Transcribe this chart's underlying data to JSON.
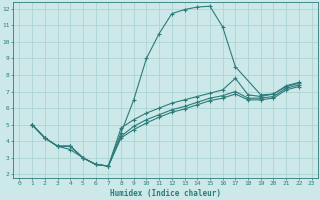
{
  "xlabel": "Humidex (Indice chaleur)",
  "bg_color": "#cce8e8",
  "line_color": "#2d7b7b",
  "grid_color": "#aed4d4",
  "xlim": [
    -0.5,
    23.5
  ],
  "ylim": [
    1.8,
    12.4
  ],
  "xticks": [
    0,
    1,
    2,
    3,
    4,
    5,
    6,
    7,
    8,
    9,
    10,
    11,
    12,
    13,
    14,
    15,
    16,
    17,
    18,
    19,
    20,
    21,
    22,
    23
  ],
  "yticks": [
    2,
    3,
    4,
    5,
    6,
    7,
    8,
    9,
    10,
    11,
    12
  ],
  "lines": [
    {
      "x": [
        1,
        2,
        3,
        4,
        5,
        6,
        7,
        8,
        9,
        10,
        11,
        12,
        13,
        14,
        15,
        16,
        17,
        19,
        20,
        21,
        22
      ],
      "y": [
        5.0,
        4.2,
        3.7,
        3.5,
        3.0,
        2.6,
        2.5,
        4.5,
        6.5,
        9.0,
        10.5,
        11.7,
        11.95,
        12.1,
        12.15,
        10.9,
        8.5,
        6.8,
        6.85,
        7.35,
        7.55
      ]
    },
    {
      "x": [
        1,
        2,
        3,
        4,
        5,
        6,
        7,
        8,
        9,
        10,
        11,
        12,
        13,
        14,
        15,
        16,
        17,
        18,
        19,
        20,
        21,
        22
      ],
      "y": [
        5.0,
        4.2,
        3.7,
        3.7,
        3.0,
        2.6,
        2.5,
        4.8,
        5.3,
        5.7,
        6.0,
        6.3,
        6.5,
        6.7,
        6.9,
        7.1,
        7.8,
        6.8,
        6.7,
        6.85,
        7.3,
        7.5
      ]
    },
    {
      "x": [
        1,
        2,
        3,
        4,
        5,
        6,
        7,
        8,
        9,
        10,
        11,
        12,
        13,
        14,
        15,
        16,
        17,
        18,
        19,
        20,
        21,
        22
      ],
      "y": [
        5.0,
        4.2,
        3.7,
        3.7,
        3.0,
        2.6,
        2.5,
        4.3,
        4.9,
        5.3,
        5.6,
        5.9,
        6.1,
        6.35,
        6.6,
        6.75,
        7.0,
        6.6,
        6.6,
        6.7,
        7.2,
        7.4
      ]
    },
    {
      "x": [
        1,
        2,
        3,
        4,
        5,
        6,
        7,
        8,
        9,
        10,
        11,
        12,
        13,
        14,
        15,
        16,
        17,
        18,
        19,
        20,
        21,
        22
      ],
      "y": [
        5.0,
        4.2,
        3.7,
        3.7,
        3.0,
        2.6,
        2.5,
        4.2,
        4.7,
        5.1,
        5.45,
        5.75,
        5.95,
        6.2,
        6.45,
        6.6,
        6.85,
        6.5,
        6.5,
        6.6,
        7.1,
        7.3
      ]
    }
  ]
}
